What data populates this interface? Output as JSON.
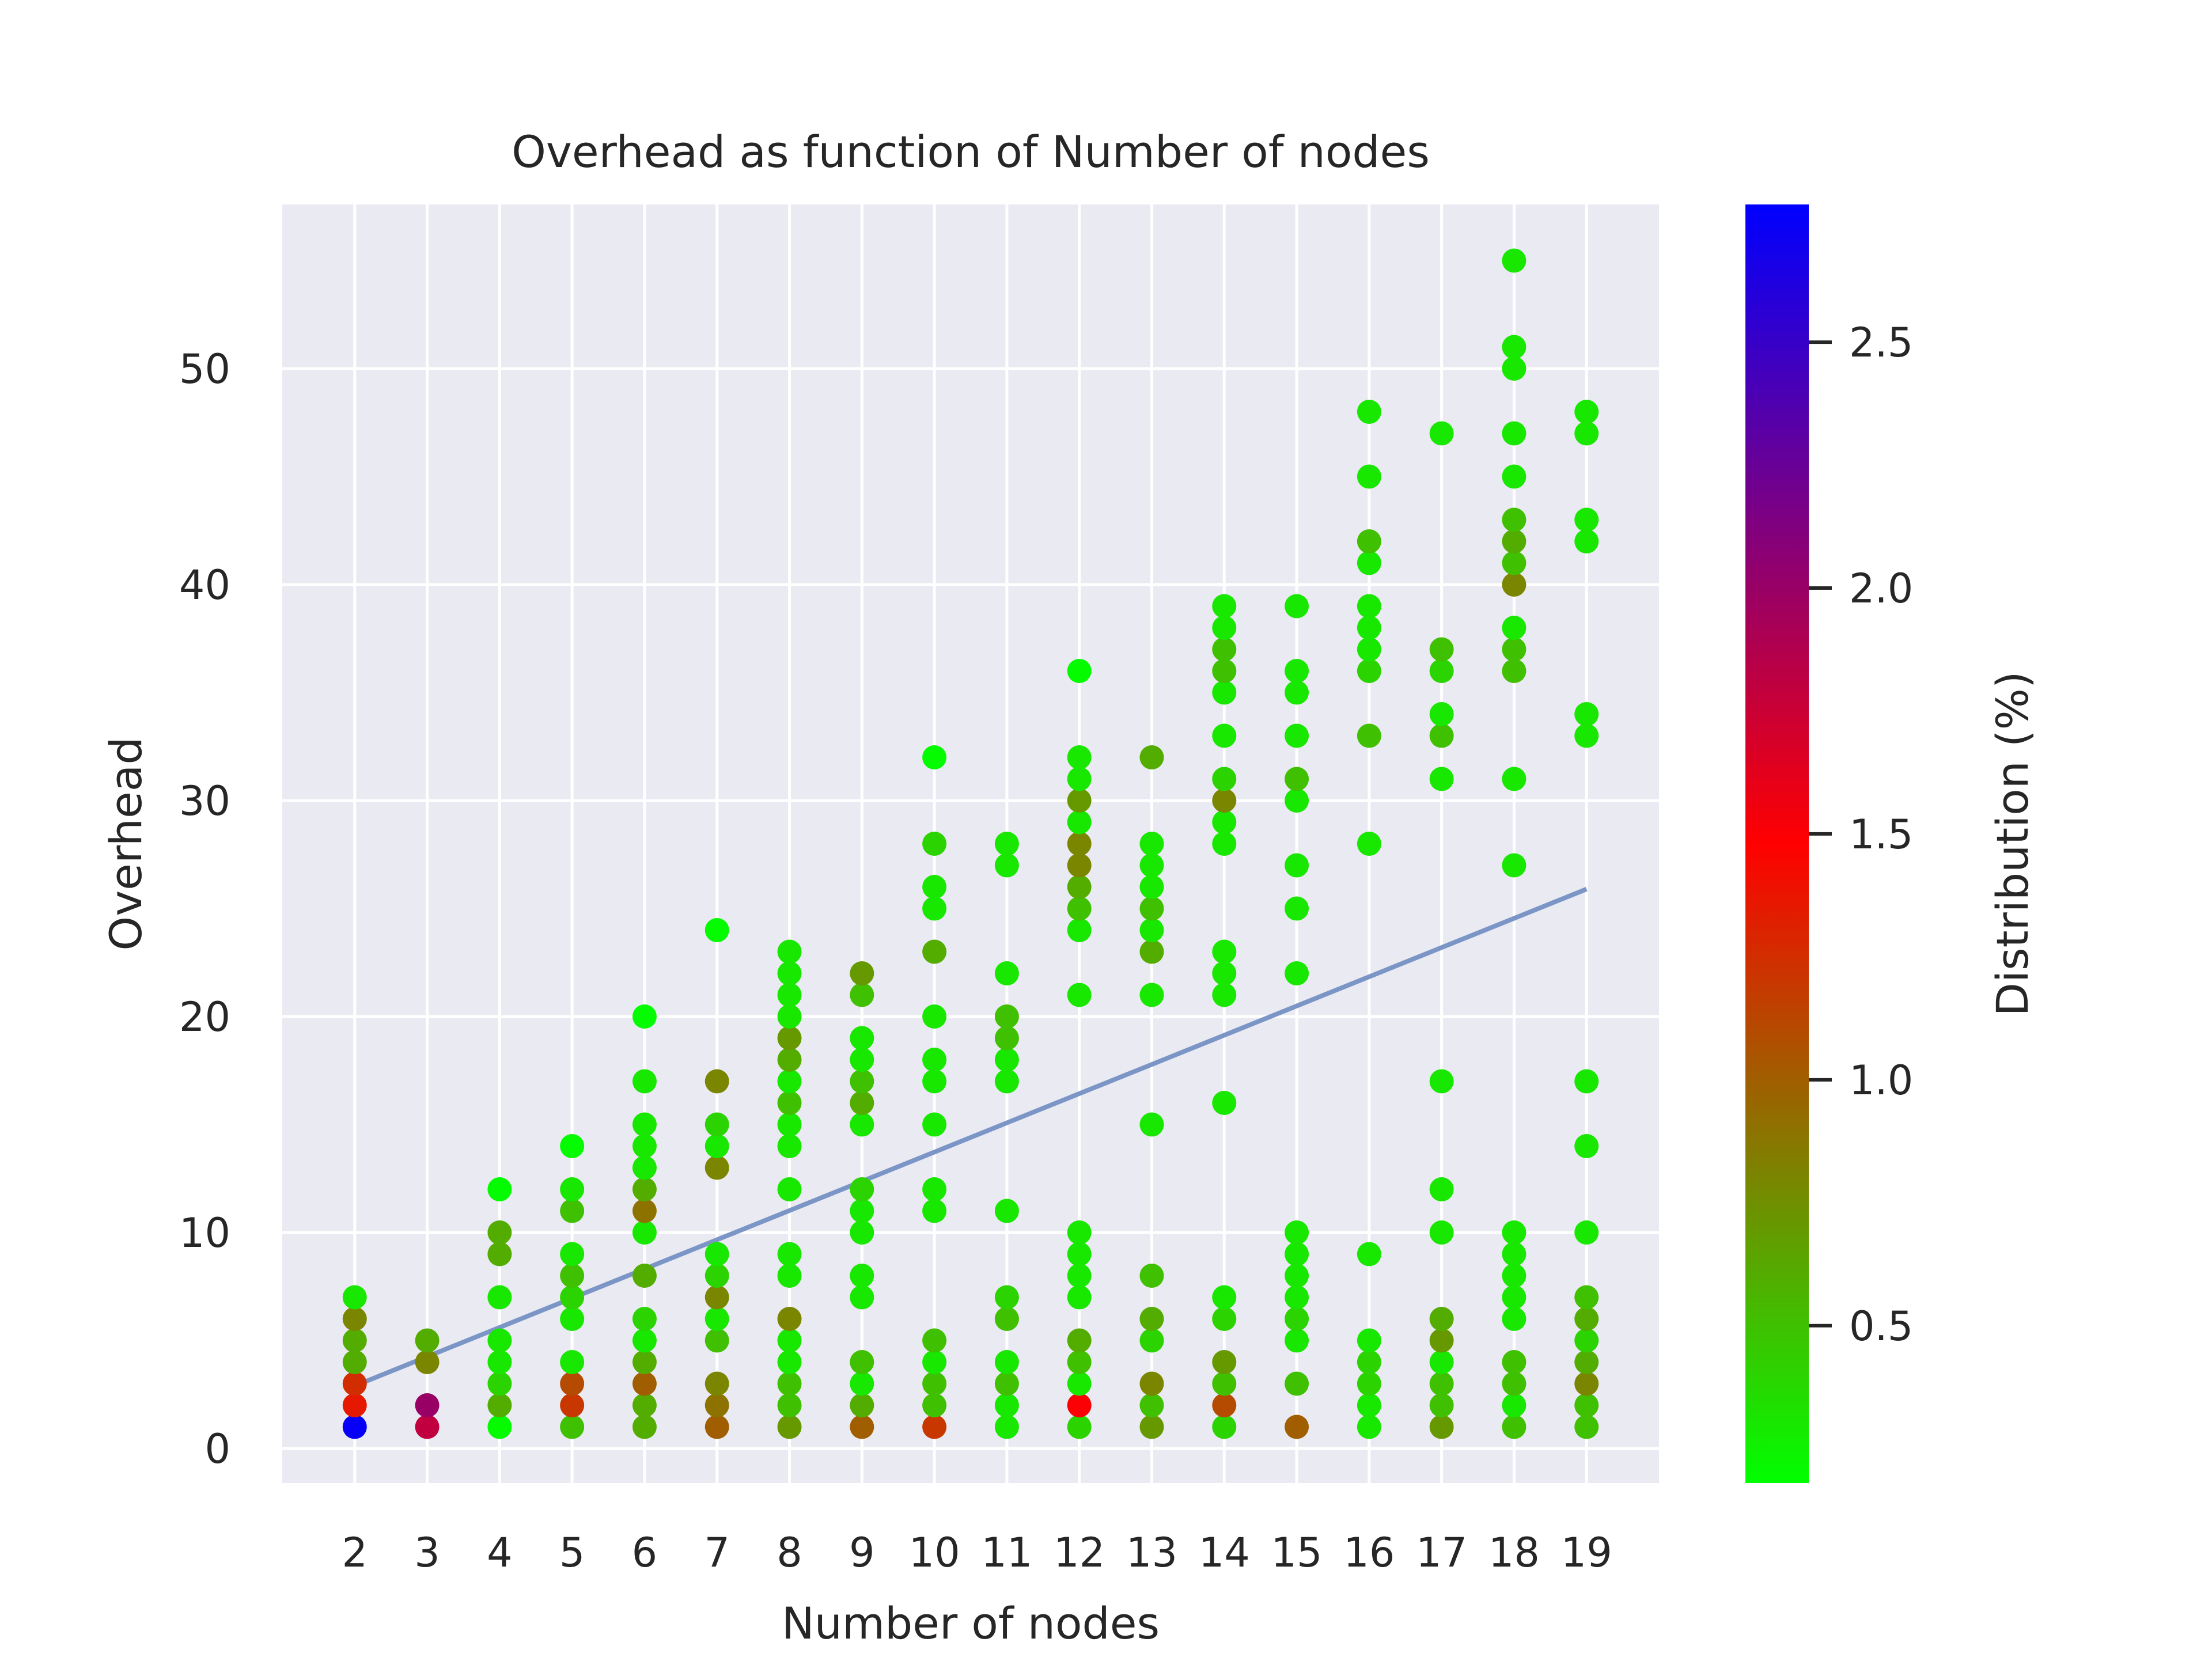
{
  "chart_data": {
    "type": "scatter",
    "title": "Overhead as function of Number of nodes",
    "xlabel": "Number of nodes",
    "ylabel": "Overhead",
    "xlim": [
      1.0,
      20.0
    ],
    "ylim": [
      -1.6,
      57.6
    ],
    "xticks": [
      2,
      3,
      4,
      5,
      6,
      7,
      8,
      9,
      10,
      11,
      12,
      13,
      14,
      15,
      16,
      17,
      18,
      19
    ],
    "yticks": [
      0,
      10,
      20,
      30,
      40,
      50
    ],
    "grid": true,
    "background": "#eaeaf2",
    "colorbar": {
      "label": "Distribution (%)",
      "range": [
        0.18,
        2.78
      ],
      "ticks": [
        0.5,
        1.0,
        1.5,
        2.0,
        2.5
      ],
      "tick_labels": [
        "0.5",
        "1.0",
        "1.5",
        "2.0",
        "2.5"
      ],
      "colormap": [
        "#00ff00",
        "#ff0000",
        "#0000ff"
      ]
    },
    "trend_line": {
      "x": [
        2,
        19
      ],
      "y": [
        2.9,
        25.9
      ],
      "color": "#7b96c6"
    },
    "points": [
      {
        "x": 2,
        "y": 1,
        "c": 2.75
      },
      {
        "x": 2,
        "y": 2,
        "c": 1.35
      },
      {
        "x": 2,
        "y": 3,
        "c": 1.25
      },
      {
        "x": 2,
        "y": 4,
        "c": 0.6
      },
      {
        "x": 2,
        "y": 5,
        "c": 0.6
      },
      {
        "x": 2,
        "y": 6,
        "c": 0.8
      },
      {
        "x": 2,
        "y": 7,
        "c": 0.3
      },
      {
        "x": 3,
        "y": 1,
        "c": 1.8
      },
      {
        "x": 3,
        "y": 2,
        "c": 2.0
      },
      {
        "x": 3,
        "y": 4,
        "c": 0.8
      },
      {
        "x": 3,
        "y": 5,
        "c": 0.6
      },
      {
        "x": 4,
        "y": 1,
        "c": 0.2
      },
      {
        "x": 4,
        "y": 2,
        "c": 0.6
      },
      {
        "x": 4,
        "y": 3,
        "c": 0.4
      },
      {
        "x": 4,
        "y": 4,
        "c": 0.3
      },
      {
        "x": 4,
        "y": 5,
        "c": 0.3
      },
      {
        "x": 4,
        "y": 7,
        "c": 0.3
      },
      {
        "x": 4,
        "y": 9,
        "c": 0.6
      },
      {
        "x": 4,
        "y": 10,
        "c": 0.6
      },
      {
        "x": 4,
        "y": 12,
        "c": 0.2
      },
      {
        "x": 5,
        "y": 1,
        "c": 0.5
      },
      {
        "x": 5,
        "y": 2,
        "c": 1.2
      },
      {
        "x": 5,
        "y": 3,
        "c": 1.1
      },
      {
        "x": 5,
        "y": 4,
        "c": 0.3
      },
      {
        "x": 5,
        "y": 6,
        "c": 0.3
      },
      {
        "x": 5,
        "y": 7,
        "c": 0.4
      },
      {
        "x": 5,
        "y": 8,
        "c": 0.5
      },
      {
        "x": 5,
        "y": 9,
        "c": 0.3
      },
      {
        "x": 5,
        "y": 11,
        "c": 0.5
      },
      {
        "x": 5,
        "y": 12,
        "c": 0.3
      },
      {
        "x": 5,
        "y": 14,
        "c": 0.2
      },
      {
        "x": 6,
        "y": 1,
        "c": 0.6
      },
      {
        "x": 6,
        "y": 2,
        "c": 0.6
      },
      {
        "x": 6,
        "y": 3,
        "c": 1.0
      },
      {
        "x": 6,
        "y": 4,
        "c": 0.6
      },
      {
        "x": 6,
        "y": 5,
        "c": 0.3
      },
      {
        "x": 6,
        "y": 6,
        "c": 0.4
      },
      {
        "x": 6,
        "y": 8,
        "c": 0.6
      },
      {
        "x": 6,
        "y": 10,
        "c": 0.3
      },
      {
        "x": 6,
        "y": 11,
        "c": 0.9
      },
      {
        "x": 6,
        "y": 12,
        "c": 0.6
      },
      {
        "x": 6,
        "y": 13,
        "c": 0.3
      },
      {
        "x": 6,
        "y": 14,
        "c": 0.3
      },
      {
        "x": 6,
        "y": 15,
        "c": 0.3
      },
      {
        "x": 6,
        "y": 17,
        "c": 0.3
      },
      {
        "x": 6,
        "y": 20,
        "c": 0.2
      },
      {
        "x": 7,
        "y": 1,
        "c": 1.0
      },
      {
        "x": 7,
        "y": 2,
        "c": 0.9
      },
      {
        "x": 7,
        "y": 3,
        "c": 0.8
      },
      {
        "x": 7,
        "y": 5,
        "c": 0.5
      },
      {
        "x": 7,
        "y": 6,
        "c": 0.3
      },
      {
        "x": 7,
        "y": 7,
        "c": 0.8
      },
      {
        "x": 7,
        "y": 8,
        "c": 0.4
      },
      {
        "x": 7,
        "y": 9,
        "c": 0.3
      },
      {
        "x": 7,
        "y": 13,
        "c": 0.8
      },
      {
        "x": 7,
        "y": 14,
        "c": 0.3
      },
      {
        "x": 7,
        "y": 15,
        "c": 0.4
      },
      {
        "x": 7,
        "y": 17,
        "c": 0.8
      },
      {
        "x": 7,
        "y": 24,
        "c": 0.2
      },
      {
        "x": 8,
        "y": 1,
        "c": 0.7
      },
      {
        "x": 8,
        "y": 2,
        "c": 0.5
      },
      {
        "x": 8,
        "y": 3,
        "c": 0.5
      },
      {
        "x": 8,
        "y": 4,
        "c": 0.3
      },
      {
        "x": 8,
        "y": 5,
        "c": 0.3
      },
      {
        "x": 8,
        "y": 6,
        "c": 0.8
      },
      {
        "x": 8,
        "y": 8,
        "c": 0.3
      },
      {
        "x": 8,
        "y": 9,
        "c": 0.3
      },
      {
        "x": 8,
        "y": 12,
        "c": 0.3
      },
      {
        "x": 8,
        "y": 14,
        "c": 0.3
      },
      {
        "x": 8,
        "y": 15,
        "c": 0.3
      },
      {
        "x": 8,
        "y": 16,
        "c": 0.5
      },
      {
        "x": 8,
        "y": 17,
        "c": 0.3
      },
      {
        "x": 8,
        "y": 18,
        "c": 0.6
      },
      {
        "x": 8,
        "y": 19,
        "c": 0.7
      },
      {
        "x": 8,
        "y": 20,
        "c": 0.3
      },
      {
        "x": 8,
        "y": 21,
        "c": 0.3
      },
      {
        "x": 8,
        "y": 22,
        "c": 0.3
      },
      {
        "x": 8,
        "y": 23,
        "c": 0.3
      },
      {
        "x": 9,
        "y": 1,
        "c": 1.0
      },
      {
        "x": 9,
        "y": 2,
        "c": 0.6
      },
      {
        "x": 9,
        "y": 3,
        "c": 0.3
      },
      {
        "x": 9,
        "y": 4,
        "c": 0.5
      },
      {
        "x": 9,
        "y": 7,
        "c": 0.3
      },
      {
        "x": 9,
        "y": 8,
        "c": 0.3
      },
      {
        "x": 9,
        "y": 10,
        "c": 0.3
      },
      {
        "x": 9,
        "y": 11,
        "c": 0.3
      },
      {
        "x": 9,
        "y": 12,
        "c": 0.4
      },
      {
        "x": 9,
        "y": 15,
        "c": 0.3
      },
      {
        "x": 9,
        "y": 16,
        "c": 0.6
      },
      {
        "x": 9,
        "y": 17,
        "c": 0.5
      },
      {
        "x": 9,
        "y": 18,
        "c": 0.3
      },
      {
        "x": 9,
        "y": 19,
        "c": 0.3
      },
      {
        "x": 9,
        "y": 21,
        "c": 0.5
      },
      {
        "x": 9,
        "y": 22,
        "c": 0.7
      },
      {
        "x": 10,
        "y": 1,
        "c": 1.2
      },
      {
        "x": 10,
        "y": 2,
        "c": 0.5
      },
      {
        "x": 10,
        "y": 3,
        "c": 0.5
      },
      {
        "x": 10,
        "y": 4,
        "c": 0.3
      },
      {
        "x": 10,
        "y": 5,
        "c": 0.5
      },
      {
        "x": 10,
        "y": 11,
        "c": 0.3
      },
      {
        "x": 10,
        "y": 12,
        "c": 0.3
      },
      {
        "x": 10,
        "y": 15,
        "c": 0.3
      },
      {
        "x": 10,
        "y": 17,
        "c": 0.3
      },
      {
        "x": 10,
        "y": 18,
        "c": 0.3
      },
      {
        "x": 10,
        "y": 20,
        "c": 0.3
      },
      {
        "x": 10,
        "y": 23,
        "c": 0.6
      },
      {
        "x": 10,
        "y": 25,
        "c": 0.3
      },
      {
        "x": 10,
        "y": 26,
        "c": 0.3
      },
      {
        "x": 10,
        "y": 28,
        "c": 0.4
      },
      {
        "x": 10,
        "y": 32,
        "c": 0.2
      },
      {
        "x": 11,
        "y": 1,
        "c": 0.3
      },
      {
        "x": 11,
        "y": 2,
        "c": 0.3
      },
      {
        "x": 11,
        "y": 3,
        "c": 0.5
      },
      {
        "x": 11,
        "y": 4,
        "c": 0.3
      },
      {
        "x": 11,
        "y": 6,
        "c": 0.5
      },
      {
        "x": 11,
        "y": 7,
        "c": 0.4
      },
      {
        "x": 11,
        "y": 11,
        "c": 0.3
      },
      {
        "x": 11,
        "y": 17,
        "c": 0.3
      },
      {
        "x": 11,
        "y": 18,
        "c": 0.3
      },
      {
        "x": 11,
        "y": 19,
        "c": 0.5
      },
      {
        "x": 11,
        "y": 20,
        "c": 0.5
      },
      {
        "x": 11,
        "y": 22,
        "c": 0.3
      },
      {
        "x": 11,
        "y": 27,
        "c": 0.3
      },
      {
        "x": 11,
        "y": 28,
        "c": 0.3
      },
      {
        "x": 12,
        "y": 1,
        "c": 0.4
      },
      {
        "x": 12,
        "y": 2,
        "c": 1.5
      },
      {
        "x": 12,
        "y": 3,
        "c": 0.3
      },
      {
        "x": 12,
        "y": 4,
        "c": 0.5
      },
      {
        "x": 12,
        "y": 5,
        "c": 0.6
      },
      {
        "x": 12,
        "y": 7,
        "c": 0.3
      },
      {
        "x": 12,
        "y": 8,
        "c": 0.3
      },
      {
        "x": 12,
        "y": 9,
        "c": 0.3
      },
      {
        "x": 12,
        "y": 10,
        "c": 0.3
      },
      {
        "x": 12,
        "y": 21,
        "c": 0.3
      },
      {
        "x": 12,
        "y": 24,
        "c": 0.3
      },
      {
        "x": 12,
        "y": 25,
        "c": 0.5
      },
      {
        "x": 12,
        "y": 26,
        "c": 0.6
      },
      {
        "x": 12,
        "y": 27,
        "c": 0.8
      },
      {
        "x": 12,
        "y": 28,
        "c": 0.8
      },
      {
        "x": 12,
        "y": 29,
        "c": 0.3
      },
      {
        "x": 12,
        "y": 30,
        "c": 0.7
      },
      {
        "x": 12,
        "y": 31,
        "c": 0.3
      },
      {
        "x": 12,
        "y": 32,
        "c": 0.3
      },
      {
        "x": 12,
        "y": 36,
        "c": 0.2
      },
      {
        "x": 13,
        "y": 1,
        "c": 0.7
      },
      {
        "x": 13,
        "y": 2,
        "c": 0.5
      },
      {
        "x": 13,
        "y": 3,
        "c": 0.8
      },
      {
        "x": 13,
        "y": 5,
        "c": 0.4
      },
      {
        "x": 13,
        "y": 6,
        "c": 0.6
      },
      {
        "x": 13,
        "y": 8,
        "c": 0.5
      },
      {
        "x": 13,
        "y": 15,
        "c": 0.3
      },
      {
        "x": 13,
        "y": 21,
        "c": 0.3
      },
      {
        "x": 13,
        "y": 23,
        "c": 0.6
      },
      {
        "x": 13,
        "y": 24,
        "c": 0.3
      },
      {
        "x": 13,
        "y": 25,
        "c": 0.5
      },
      {
        "x": 13,
        "y": 26,
        "c": 0.3
      },
      {
        "x": 13,
        "y": 27,
        "c": 0.3
      },
      {
        "x": 13,
        "y": 28,
        "c": 0.3
      },
      {
        "x": 13,
        "y": 32,
        "c": 0.6
      },
      {
        "x": 14,
        "y": 1,
        "c": 0.4
      },
      {
        "x": 14,
        "y": 2,
        "c": 1.1
      },
      {
        "x": 14,
        "y": 3,
        "c": 0.5
      },
      {
        "x": 14,
        "y": 4,
        "c": 0.7
      },
      {
        "x": 14,
        "y": 6,
        "c": 0.4
      },
      {
        "x": 14,
        "y": 7,
        "c": 0.3
      },
      {
        "x": 14,
        "y": 16,
        "c": 0.3
      },
      {
        "x": 14,
        "y": 21,
        "c": 0.3
      },
      {
        "x": 14,
        "y": 22,
        "c": 0.3
      },
      {
        "x": 14,
        "y": 23,
        "c": 0.3
      },
      {
        "x": 14,
        "y": 28,
        "c": 0.3
      },
      {
        "x": 14,
        "y": 29,
        "c": 0.3
      },
      {
        "x": 14,
        "y": 30,
        "c": 0.8
      },
      {
        "x": 14,
        "y": 31,
        "c": 0.4
      },
      {
        "x": 14,
        "y": 33,
        "c": 0.3
      },
      {
        "x": 14,
        "y": 35,
        "c": 0.3
      },
      {
        "x": 14,
        "y": 36,
        "c": 0.5
      },
      {
        "x": 14,
        "y": 37,
        "c": 0.5
      },
      {
        "x": 14,
        "y": 38,
        "c": 0.3
      },
      {
        "x": 14,
        "y": 39,
        "c": 0.3
      },
      {
        "x": 15,
        "y": 1,
        "c": 1.0
      },
      {
        "x": 15,
        "y": 3,
        "c": 0.5
      },
      {
        "x": 15,
        "y": 5,
        "c": 0.3
      },
      {
        "x": 15,
        "y": 6,
        "c": 0.4
      },
      {
        "x": 15,
        "y": 7,
        "c": 0.3
      },
      {
        "x": 15,
        "y": 8,
        "c": 0.3
      },
      {
        "x": 15,
        "y": 9,
        "c": 0.3
      },
      {
        "x": 15,
        "y": 10,
        "c": 0.3
      },
      {
        "x": 15,
        "y": 22,
        "c": 0.3
      },
      {
        "x": 15,
        "y": 25,
        "c": 0.3
      },
      {
        "x": 15,
        "y": 27,
        "c": 0.3
      },
      {
        "x": 15,
        "y": 30,
        "c": 0.3
      },
      {
        "x": 15,
        "y": 31,
        "c": 0.5
      },
      {
        "x": 15,
        "y": 33,
        "c": 0.3
      },
      {
        "x": 15,
        "y": 35,
        "c": 0.3
      },
      {
        "x": 15,
        "y": 36,
        "c": 0.3
      },
      {
        "x": 15,
        "y": 39,
        "c": 0.3
      },
      {
        "x": 16,
        "y": 1,
        "c": 0.3
      },
      {
        "x": 16,
        "y": 2,
        "c": 0.3
      },
      {
        "x": 16,
        "y": 3,
        "c": 0.4
      },
      {
        "x": 16,
        "y": 4,
        "c": 0.4
      },
      {
        "x": 16,
        "y": 5,
        "c": 0.3
      },
      {
        "x": 16,
        "y": 9,
        "c": 0.3
      },
      {
        "x": 16,
        "y": 28,
        "c": 0.3
      },
      {
        "x": 16,
        "y": 33,
        "c": 0.5
      },
      {
        "x": 16,
        "y": 36,
        "c": 0.4
      },
      {
        "x": 16,
        "y": 37,
        "c": 0.3
      },
      {
        "x": 16,
        "y": 38,
        "c": 0.3
      },
      {
        "x": 16,
        "y": 39,
        "c": 0.3
      },
      {
        "x": 16,
        "y": 41,
        "c": 0.3
      },
      {
        "x": 16,
        "y": 42,
        "c": 0.5
      },
      {
        "x": 16,
        "y": 45,
        "c": 0.3
      },
      {
        "x": 16,
        "y": 48,
        "c": 0.3
      },
      {
        "x": 17,
        "y": 1,
        "c": 0.7
      },
      {
        "x": 17,
        "y": 2,
        "c": 0.5
      },
      {
        "x": 17,
        "y": 3,
        "c": 0.5
      },
      {
        "x": 17,
        "y": 4,
        "c": 0.3
      },
      {
        "x": 17,
        "y": 5,
        "c": 0.7
      },
      {
        "x": 17,
        "y": 6,
        "c": 0.6
      },
      {
        "x": 17,
        "y": 10,
        "c": 0.3
      },
      {
        "x": 17,
        "y": 12,
        "c": 0.3
      },
      {
        "x": 17,
        "y": 17,
        "c": 0.3
      },
      {
        "x": 17,
        "y": 31,
        "c": 0.3
      },
      {
        "x": 17,
        "y": 33,
        "c": 0.5
      },
      {
        "x": 17,
        "y": 34,
        "c": 0.3
      },
      {
        "x": 17,
        "y": 36,
        "c": 0.4
      },
      {
        "x": 17,
        "y": 37,
        "c": 0.5
      },
      {
        "x": 17,
        "y": 47,
        "c": 0.3
      },
      {
        "x": 18,
        "y": 1,
        "c": 0.5
      },
      {
        "x": 18,
        "y": 2,
        "c": 0.3
      },
      {
        "x": 18,
        "y": 3,
        "c": 0.5
      },
      {
        "x": 18,
        "y": 4,
        "c": 0.5
      },
      {
        "x": 18,
        "y": 6,
        "c": 0.3
      },
      {
        "x": 18,
        "y": 7,
        "c": 0.3
      },
      {
        "x": 18,
        "y": 8,
        "c": 0.3
      },
      {
        "x": 18,
        "y": 9,
        "c": 0.3
      },
      {
        "x": 18,
        "y": 10,
        "c": 0.3
      },
      {
        "x": 18,
        "y": 27,
        "c": 0.3
      },
      {
        "x": 18,
        "y": 31,
        "c": 0.3
      },
      {
        "x": 18,
        "y": 36,
        "c": 0.5
      },
      {
        "x": 18,
        "y": 37,
        "c": 0.5
      },
      {
        "x": 18,
        "y": 38,
        "c": 0.3
      },
      {
        "x": 18,
        "y": 40,
        "c": 0.8
      },
      {
        "x": 18,
        "y": 41,
        "c": 0.5
      },
      {
        "x": 18,
        "y": 42,
        "c": 0.6
      },
      {
        "x": 18,
        "y": 43,
        "c": 0.5
      },
      {
        "x": 18,
        "y": 45,
        "c": 0.3
      },
      {
        "x": 18,
        "y": 47,
        "c": 0.3
      },
      {
        "x": 18,
        "y": 50,
        "c": 0.3
      },
      {
        "x": 18,
        "y": 51,
        "c": 0.3
      },
      {
        "x": 18,
        "y": 55,
        "c": 0.3
      },
      {
        "x": 19,
        "y": 1,
        "c": 0.5
      },
      {
        "x": 19,
        "y": 2,
        "c": 0.5
      },
      {
        "x": 19,
        "y": 3,
        "c": 0.8
      },
      {
        "x": 19,
        "y": 4,
        "c": 0.6
      },
      {
        "x": 19,
        "y": 5,
        "c": 0.4
      },
      {
        "x": 19,
        "y": 6,
        "c": 0.6
      },
      {
        "x": 19,
        "y": 7,
        "c": 0.5
      },
      {
        "x": 19,
        "y": 10,
        "c": 0.3
      },
      {
        "x": 19,
        "y": 14,
        "c": 0.3
      },
      {
        "x": 19,
        "y": 17,
        "c": 0.3
      },
      {
        "x": 19,
        "y": 33,
        "c": 0.3
      },
      {
        "x": 19,
        "y": 34,
        "c": 0.3
      },
      {
        "x": 19,
        "y": 42,
        "c": 0.3
      },
      {
        "x": 19,
        "y": 43,
        "c": 0.3
      },
      {
        "x": 19,
        "y": 47,
        "c": 0.3
      },
      {
        "x": 19,
        "y": 48,
        "c": 0.3
      }
    ]
  }
}
